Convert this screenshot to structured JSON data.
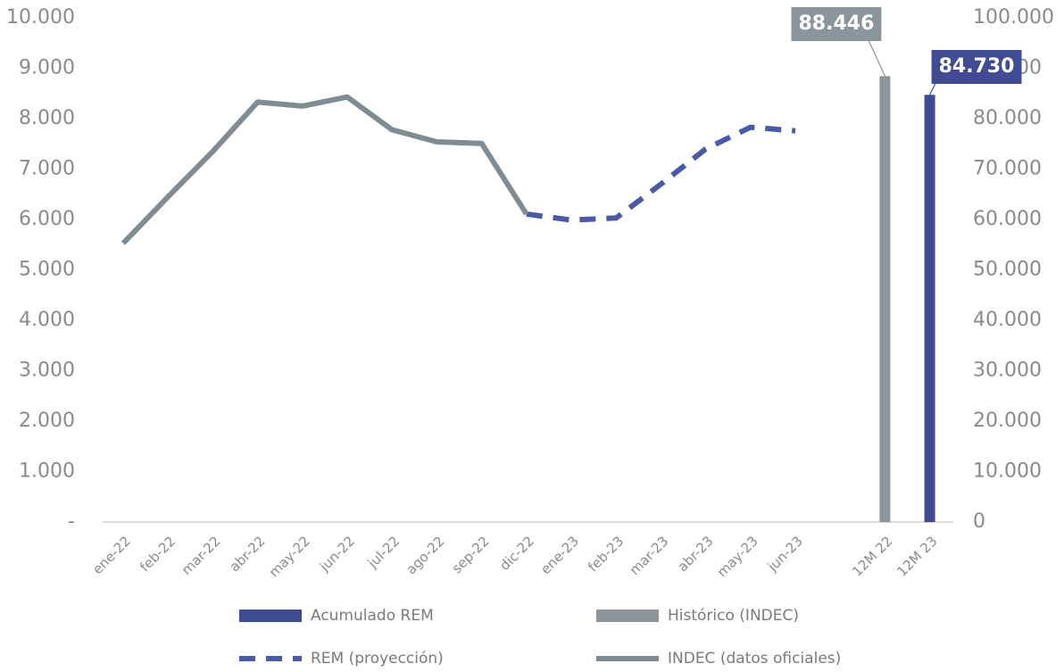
{
  "chart_data": {
    "type": "combo",
    "categories": [
      "ene-22",
      "feb-22",
      "mar-22",
      "abr-22",
      "may-22",
      "jun-22",
      "jul-22",
      "ago-22",
      "sep-22",
      "dic-22",
      "ene-23",
      "feb-23",
      "mar-23",
      "abr-23",
      "may-23",
      "jun-23",
      null,
      "12M 22",
      "12M 23"
    ],
    "ylim": [
      0,
      10000
    ],
    "yticks": [
      {
        "value": 0,
        "label": "-"
      },
      {
        "value": 1000,
        "label": "1.000"
      },
      {
        "value": 2000,
        "label": "2.000"
      },
      {
        "value": 3000,
        "label": "3.000"
      },
      {
        "value": 4000,
        "label": "4.000"
      },
      {
        "value": 5000,
        "label": "5.000"
      },
      {
        "value": 6000,
        "label": "6.000"
      },
      {
        "value": 7000,
        "label": "7.000"
      },
      {
        "value": 8000,
        "label": "8.000"
      },
      {
        "value": 9000,
        "label": "9.000"
      },
      {
        "value": 10000,
        "label": "10.000"
      }
    ],
    "y2lim": [
      0,
      100000
    ],
    "y2ticks": [
      0,
      {
        "value": 10000,
        "label": "10.000"
      },
      {
        "value": 20000,
        "label": "20.000"
      },
      {
        "value": 30000,
        "label": "30.000"
      },
      {
        "value": 40000,
        "label": "40.000"
      },
      {
        "value": 50000,
        "label": "50.000"
      },
      {
        "value": 60000,
        "label": "60.000"
      },
      {
        "value": 70000,
        "label": "70.000"
      },
      {
        "value": 80000,
        "label": "80.000"
      },
      {
        "value": 90000,
        "label": "90.000"
      },
      {
        "value": 100000,
        "label": "100.000"
      }
    ],
    "series": [
      {
        "name": "Acumulado REM",
        "type": "bar",
        "axis": "y2",
        "color": "#3f4c94",
        "values": [
          null,
          null,
          null,
          null,
          null,
          null,
          null,
          null,
          null,
          null,
          null,
          null,
          null,
          null,
          null,
          null,
          null,
          null,
          84730
        ],
        "value_labels": [
          null,
          null,
          null,
          null,
          null,
          null,
          null,
          null,
          null,
          null,
          null,
          null,
          null,
          null,
          null,
          null,
          null,
          null,
          "84.730"
        ]
      },
      {
        "name": "Histórico (INDEC)",
        "type": "bar",
        "axis": "y2",
        "color": "#8a969c",
        "values": [
          null,
          null,
          null,
          null,
          null,
          null,
          null,
          null,
          null,
          null,
          null,
          null,
          null,
          null,
          null,
          null,
          null,
          88446,
          null
        ],
        "value_labels": [
          null,
          null,
          null,
          null,
          null,
          null,
          null,
          null,
          null,
          null,
          null,
          null,
          null,
          null,
          null,
          null,
          null,
          "88.446",
          null
        ]
      },
      {
        "name": "REM (proyección)",
        "type": "line",
        "dashed": true,
        "color": "#4a5aa8",
        "values": [
          null,
          null,
          null,
          null,
          null,
          null,
          null,
          null,
          null,
          6110,
          5990,
          6030,
          6700,
          7400,
          7830,
          7760,
          null,
          null,
          null
        ]
      },
      {
        "name": "INDEC (datos oficiales)",
        "type": "line",
        "dashed": false,
        "color": "#7f8c94",
        "values": [
          5530,
          6450,
          7350,
          8330,
          8250,
          8430,
          7780,
          7540,
          7510,
          6110,
          null,
          null,
          null,
          null,
          null,
          null,
          null,
          null,
          null
        ]
      }
    ]
  }
}
